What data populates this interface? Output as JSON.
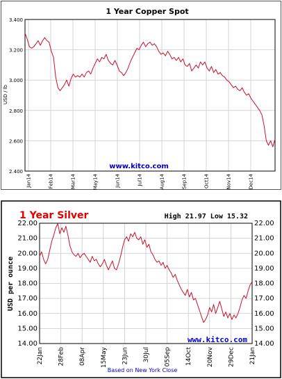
{
  "chart_data": [
    {
      "type": "line",
      "title": "1 Year Copper Spot",
      "ylabel": "USD / lb",
      "ylim": [
        2.4,
        3.4
      ],
      "y_ticks": [
        "2.400",
        "2.600",
        "2.800",
        "3.000",
        "3.200",
        "3.400"
      ],
      "x_ticks": [
        "Jan14",
        "Feb14",
        "Mar14",
        "May14",
        "Jun14",
        "Jul14",
        "Aug14",
        "Sep14",
        "Oct14",
        "Nov14",
        "Dec14"
      ],
      "grid": true,
      "watermark": "www.kitco.com",
      "colors": {
        "line": "#c8102e",
        "grid": "#cccccc",
        "watermark": "#0000cc",
        "frame": "#000000"
      },
      "series": [
        {
          "values": [
            3.31,
            3.27,
            3.22,
            3.21,
            3.22,
            3.24,
            3.26,
            3.23,
            3.26,
            3.28,
            3.26,
            3.25,
            3.19,
            3.15,
            3.02,
            2.95,
            2.93,
            2.95,
            2.97,
            3.0,
            2.96,
            3.01,
            3.04,
            3.02,
            3.03,
            3.02,
            3.04,
            3.02,
            3.05,
            3.06,
            3.04,
            3.08,
            3.11,
            3.14,
            3.12,
            3.15,
            3.14,
            3.17,
            3.13,
            3.11,
            3.1,
            3.13,
            3.1,
            3.06,
            3.05,
            3.03,
            3.05,
            3.08,
            3.12,
            3.15,
            3.18,
            3.21,
            3.2,
            3.23,
            3.25,
            3.22,
            3.24,
            3.25,
            3.23,
            3.24,
            3.22,
            3.19,
            3.17,
            3.18,
            3.16,
            3.19,
            3.17,
            3.14,
            3.15,
            3.13,
            3.15,
            3.12,
            3.14,
            3.1,
            3.09,
            3.11,
            3.06,
            3.08,
            3.1,
            3.08,
            3.12,
            3.1,
            3.12,
            3.08,
            3.06,
            3.09,
            3.05,
            3.07,
            3.04,
            3.05,
            3.03,
            3.02,
            3.0,
            2.99,
            2.97,
            2.95,
            2.96,
            2.94,
            2.93,
            2.95,
            2.92,
            2.9,
            2.91,
            2.88,
            2.86,
            2.84,
            2.82,
            2.8,
            2.77,
            2.7,
            2.6,
            2.57,
            2.6,
            2.56,
            2.61
          ]
        }
      ]
    },
    {
      "type": "line",
      "title": "1 Year Silver",
      "subtitle": "High 21.97 Low 15.32",
      "ylabel": "USD per ounce",
      "xlabel": "Based on New York Close",
      "ylim": [
        14,
        22
      ],
      "y_ticks": [
        "14.00",
        "15.00",
        "16.00",
        "17.00",
        "18.00",
        "19.00",
        "20.00",
        "21.00",
        "22.00"
      ],
      "x_ticks": [
        "22Jan",
        "28Feb",
        "08Apr",
        "15May",
        "23Jun",
        "30Jul",
        "05Sep",
        "14Oct",
        "20Nov",
        "29Dec",
        "21Jan"
      ],
      "grid": true,
      "watermark": "www.kitco.com",
      "colors": {
        "line": "#c8102e",
        "title": "#e00000",
        "grid": "#c8c8c8",
        "watermark": "#0000cc",
        "xlabel": "#0000cc",
        "frame": "#000000"
      },
      "series": [
        {
          "values": [
            19.8,
            20.1,
            19.6,
            19.3,
            19.6,
            20.2,
            20.8,
            21.2,
            21.7,
            21.97,
            21.3,
            21.7,
            21.4,
            21.8,
            21.2,
            20.5,
            20.1,
            19.9,
            19.8,
            20.0,
            19.7,
            19.9,
            20.0,
            19.8,
            19.6,
            19.4,
            19.8,
            19.5,
            19.6,
            19.3,
            19.1,
            19.3,
            19.6,
            19.2,
            18.9,
            19.2,
            19.5,
            19.0,
            18.9,
            19.3,
            19.8,
            20.4,
            20.9,
            21.1,
            20.8,
            21.3,
            21.1,
            21.4,
            21.0,
            20.9,
            21.1,
            20.6,
            20.9,
            20.4,
            20.6,
            20.1,
            19.9,
            19.6,
            19.4,
            19.5,
            19.2,
            19.4,
            19.0,
            19.2,
            18.9,
            18.7,
            18.4,
            18.6,
            18.2,
            17.9,
            17.6,
            17.4,
            17.2,
            17.6,
            17.1,
            17.4,
            16.9,
            17.0,
            16.6,
            16.2,
            15.8,
            15.4,
            15.6,
            15.9,
            16.4,
            16.1,
            16.6,
            16.0,
            16.4,
            16.8,
            16.3,
            15.8,
            16.1,
            15.7,
            16.0,
            15.6,
            15.9,
            15.7,
            16.0,
            16.4,
            16.9,
            17.2,
            17.0,
            17.5,
            17.9,
            18.1
          ]
        }
      ]
    }
  ]
}
